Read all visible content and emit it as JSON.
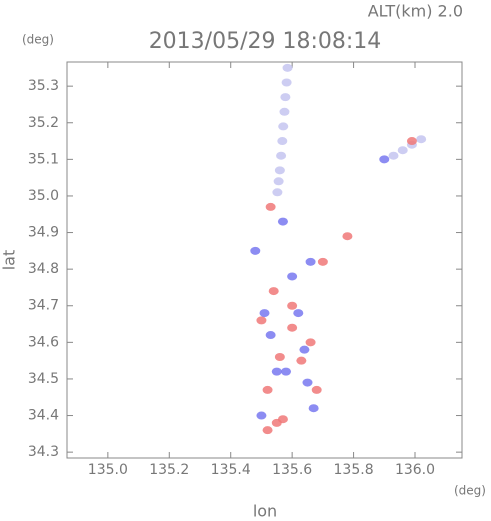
{
  "chart_data": {
    "type": "scatter",
    "title": "2013/05/29 18:08:14",
    "subtitle": "ALT(km) 2.0",
    "x_label": "lon",
    "y_label": "lat",
    "x_unit": "(deg)",
    "y_unit": "(deg)",
    "xlim": [
      134.867,
      136.153
    ],
    "ylim": [
      34.284,
      35.366
    ],
    "xticks": [
      {
        "value": 135,
        "label": "135.0"
      },
      135.2,
      135.4,
      135.6,
      135.8,
      {
        "value": 136,
        "label": "136.0"
      }
    ],
    "yticks": [
      34.3,
      34.4,
      34.5,
      34.6,
      34.7,
      34.8,
      34.9,
      {
        "value": 35,
        "label": "35.0"
      },
      35.1,
      35.2,
      35.3
    ],
    "series": [
      {
        "color": "#c4c4f0",
        "x": [
          135.585,
          135.582,
          135.578,
          135.575,
          135.571,
          135.568,
          135.564,
          135.56,
          135.556,
          135.552,
          136.02,
          135.99,
          135.96,
          135.93
        ],
        "values": [
          35.35,
          35.31,
          35.27,
          35.23,
          35.19,
          35.15,
          35.11,
          35.07,
          35.04,
          35.01,
          35.155,
          35.14,
          35.125,
          35.11
        ]
      },
      {
        "color": "#f07878",
        "x": [
          135.52,
          135.55,
          135.57,
          135.68,
          135.5,
          135.6,
          135.56,
          135.66,
          135.53,
          135.78,
          135.99,
          135.52,
          135.7,
          135.6,
          135.63,
          135.54
        ],
        "values": [
          34.36,
          34.38,
          34.39,
          34.47,
          34.66,
          34.64,
          34.56,
          34.6,
          34.97,
          34.89,
          35.15,
          34.47,
          34.82,
          34.7,
          34.55,
          34.74
        ]
      },
      {
        "color": "#7878f0",
        "x": [
          135.65,
          135.53,
          135.62,
          135.55,
          135.66,
          135.58,
          135.9,
          135.6,
          135.48,
          135.51,
          135.67,
          135.57,
          135.64,
          135.5
        ],
        "values": [
          34.49,
          34.62,
          34.68,
          34.52,
          34.82,
          34.52,
          35.1,
          34.78,
          34.85,
          34.68,
          34.42,
          34.93,
          34.58,
          34.4
        ]
      }
    ]
  }
}
